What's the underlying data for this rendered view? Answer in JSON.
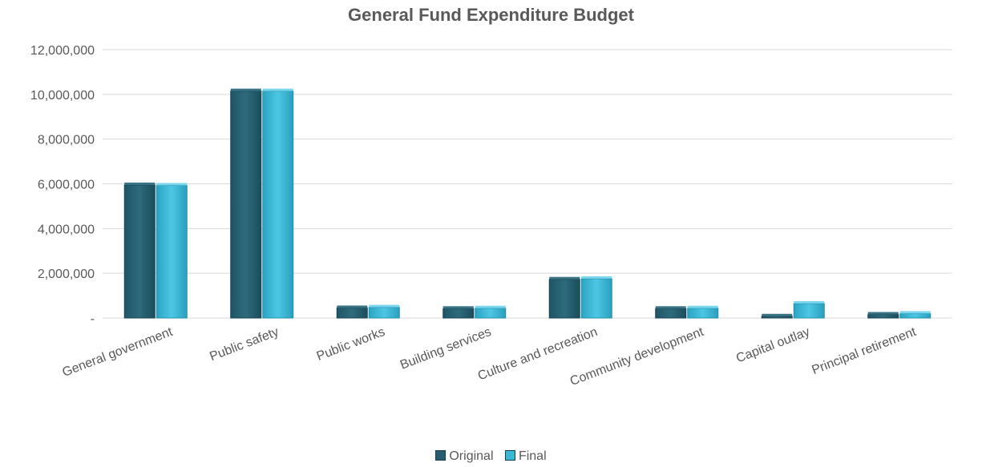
{
  "chart_data": {
    "type": "bar",
    "title": "General Fund Expenditure Budget",
    "xlabel": "",
    "ylabel": "",
    "categories": [
      "General government",
      "Public safety",
      "Public works",
      "Building services",
      "Culture and recreation",
      "Community development",
      "Capital outlay",
      "Principal retirement"
    ],
    "series": [
      {
        "name": "Original",
        "color": "#255e6e",
        "values": [
          5950000,
          10150000,
          450000,
          420000,
          1730000,
          420000,
          80000,
          160000
        ]
      },
      {
        "name": "Final",
        "color": "#39b8d6",
        "values": [
          5930000,
          10150000,
          480000,
          440000,
          1760000,
          440000,
          650000,
          200000
        ]
      }
    ],
    "ylim": [
      0,
      12000000
    ],
    "yticks": [
      0,
      2000000,
      4000000,
      6000000,
      8000000,
      10000000,
      12000000
    ],
    "ytick_labels": [
      "-",
      "2,000,000",
      "4,000,000",
      "6,000,000",
      "8,000,000",
      "10,000,000",
      "12,000,000"
    ],
    "grid": true,
    "legend_position": "bottom"
  }
}
